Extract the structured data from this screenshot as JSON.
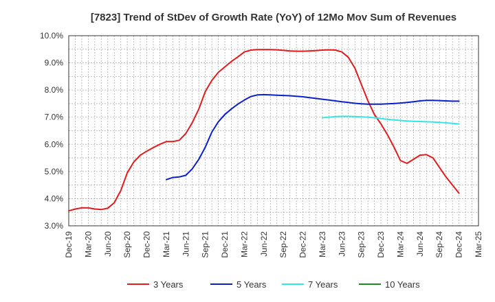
{
  "chart_data": {
    "type": "line",
    "title": "[7823]  Trend of StDev of Growth Rate (YoY) of 12Mo Mov Sum of Revenues",
    "xlabel": "",
    "ylabel": "",
    "ylim": [
      3.0,
      10.0
    ],
    "yticks": [
      3.0,
      4.0,
      5.0,
      6.0,
      7.0,
      8.0,
      9.0,
      10.0
    ],
    "ytick_labels": [
      "3.0%",
      "4.0%",
      "5.0%",
      "6.0%",
      "7.0%",
      "8.0%",
      "9.0%",
      "10.0%"
    ],
    "xlim_months": [
      0,
      63
    ],
    "xtick_months": [
      0,
      3,
      6,
      9,
      12,
      15,
      18,
      21,
      24,
      27,
      30,
      33,
      36,
      39,
      42,
      45,
      48,
      51,
      54,
      57,
      60,
      63
    ],
    "xtick_labels": [
      "Dec-19",
      "Mar-20",
      "Jun-20",
      "Sep-20",
      "Dec-20",
      "Mar-21",
      "Jun-21",
      "Sep-21",
      "Dec-21",
      "Mar-22",
      "Jun-22",
      "Sep-22",
      "Dec-22",
      "Mar-23",
      "Jun-23",
      "Sep-23",
      "Dec-23",
      "Mar-24",
      "Jun-24",
      "Sep-24",
      "Dec-24",
      "Mar-25"
    ],
    "grid": true,
    "legend_position": "bottom",
    "series": [
      {
        "name": "3 Years",
        "color": "#e31a1c",
        "x": [
          0,
          1,
          2,
          3,
          4,
          5,
          6,
          7,
          8,
          9,
          10,
          11,
          12,
          13,
          14,
          15,
          16,
          17,
          18,
          19,
          20,
          21,
          22,
          23,
          24,
          25,
          26,
          27,
          28,
          29,
          30,
          31,
          32,
          33,
          34,
          35,
          36,
          37,
          38,
          39,
          40,
          41,
          42,
          43,
          44,
          45,
          46,
          47,
          48,
          49,
          50,
          51,
          52,
          53,
          54,
          55,
          56,
          57,
          58,
          59,
          60
        ],
        "values": [
          3.55,
          3.62,
          3.66,
          3.66,
          3.62,
          3.6,
          3.65,
          3.85,
          4.3,
          4.95,
          5.35,
          5.6,
          5.75,
          5.88,
          6.0,
          6.1,
          6.1,
          6.15,
          6.4,
          6.8,
          7.3,
          7.95,
          8.35,
          8.65,
          8.85,
          9.05,
          9.22,
          9.4,
          9.47,
          9.49,
          9.49,
          9.49,
          9.48,
          9.46,
          9.44,
          9.43,
          9.43,
          9.44,
          9.45,
          9.47,
          9.48,
          9.47,
          9.4,
          9.2,
          8.8,
          8.2,
          7.6,
          7.1,
          6.75,
          6.35,
          5.9,
          5.4,
          5.3,
          5.45,
          5.6,
          5.62,
          5.5,
          5.15,
          4.8,
          4.5,
          4.2
        ]
      },
      {
        "name": "5 Years",
        "color": "#0a1fc8",
        "x": [
          15,
          16,
          17,
          18,
          19,
          20,
          21,
          22,
          23,
          24,
          25,
          26,
          27,
          28,
          29,
          30,
          31,
          32,
          33,
          34,
          35,
          36,
          37,
          38,
          39,
          40,
          41,
          42,
          43,
          44,
          45,
          46,
          47,
          48,
          49,
          50,
          51,
          52,
          53,
          54,
          55,
          56,
          57,
          58,
          59,
          60
        ],
        "values": [
          4.7,
          4.78,
          4.8,
          4.86,
          5.1,
          5.45,
          5.9,
          6.45,
          6.83,
          7.1,
          7.3,
          7.48,
          7.63,
          7.76,
          7.82,
          7.83,
          7.82,
          7.81,
          7.8,
          7.79,
          7.77,
          7.75,
          7.72,
          7.69,
          7.66,
          7.63,
          7.6,
          7.57,
          7.54,
          7.51,
          7.49,
          7.48,
          7.48,
          7.48,
          7.49,
          7.5,
          7.52,
          7.54,
          7.57,
          7.6,
          7.62,
          7.62,
          7.61,
          7.6,
          7.59,
          7.59
        ]
      },
      {
        "name": "7 Years",
        "color": "#33e6e6",
        "x": [
          39,
          40,
          41,
          42,
          43,
          44,
          45,
          46,
          47,
          48,
          49,
          50,
          51,
          52,
          53,
          54,
          55,
          56,
          57,
          58,
          59,
          60
        ],
        "values": [
          6.98,
          7.0,
          7.02,
          7.03,
          7.03,
          7.02,
          7.01,
          7.0,
          6.98,
          6.95,
          6.92,
          6.9,
          6.88,
          6.86,
          6.85,
          6.84,
          6.83,
          6.82,
          6.81,
          6.79,
          6.77,
          6.75
        ]
      },
      {
        "name": "10 Years",
        "color": "#1a8a1a",
        "x": [],
        "values": []
      }
    ]
  }
}
